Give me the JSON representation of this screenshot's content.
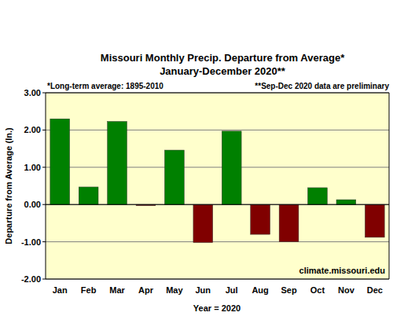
{
  "chart_data": {
    "type": "bar",
    "title": "Missouri Monthly Precip. Departure from Average*",
    "subtitle": "January-December 2020**",
    "x_label": "Year = 2020",
    "y_label": "Departure from Average (In.)",
    "annotations": [
      "*Long-term average: 1895-2010",
      "**Sep-Dec 2020 data are preliminary",
      "climate.missouri.edu"
    ],
    "categories": [
      "Jan",
      "Feb",
      "Mar",
      "Apr",
      "May",
      "Jun",
      "Jul",
      "Aug",
      "Sep",
      "Oct",
      "Nov",
      "Dec"
    ],
    "values": [
      2.3,
      0.47,
      2.23,
      -0.03,
      1.46,
      -1.02,
      1.97,
      -0.8,
      -1.0,
      0.45,
      0.13,
      -0.88
    ],
    "colors": [
      "#008000",
      "#008000",
      "#008000",
      "#800000",
      "#008000",
      "#800000",
      "#008000",
      "#800000",
      "#800000",
      "#008000",
      "#008000",
      "#800000"
    ],
    "ylim": [
      -2,
      3
    ],
    "yticks": [
      {
        "value": -2,
        "label": "-2.00"
      },
      {
        "value": -1,
        "label": "-1.00"
      },
      {
        "value": 0,
        "label": "0.00"
      },
      {
        "value": 1,
        "label": "1.00"
      },
      {
        "value": 2,
        "label": "2.00"
      },
      {
        "value": 3,
        "label": "3.00"
      }
    ],
    "grid": true
  }
}
